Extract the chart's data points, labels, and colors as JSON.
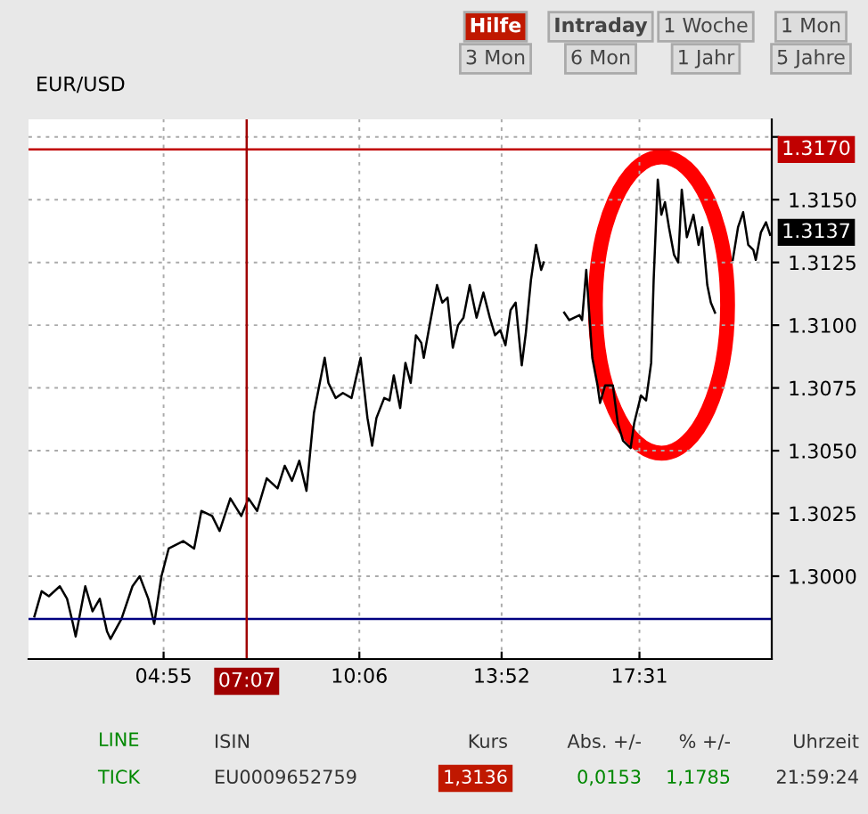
{
  "chart_data": {
    "type": "line",
    "title": "EUR/USD",
    "x": [
      1.496,
      1.688,
      1.879,
      2.17,
      2.361,
      2.517,
      2.589,
      2.843,
      3.035,
      3.227,
      3.419,
      3.512,
      3.802,
      4.093,
      4.284,
      4.512,
      4.668,
      4.86,
      5.051,
      5.435,
      5.725,
      5.917,
      6.202,
      6.399,
      6.684,
      6.974,
      7.166,
      7.394,
      7.648,
      7.934,
      8.125,
      8.317,
      8.509,
      8.7,
      8.897,
      9.182,
      9.281,
      9.473,
      9.664,
      9.893,
      10.134,
      10.315,
      10.439,
      10.552,
      10.759,
      10.899,
      11.012,
      11.181,
      11.32,
      11.46,
      11.599,
      11.739,
      11.806,
      11.949,
      12.157,
      12.296,
      12.435,
      12.575,
      12.714,
      12.857,
      13.023,
      13.204,
      13.385,
      13.554,
      13.693,
      13.833,
      13.969,
      14.104,
      14.239,
      14.4,
      14.509,
      14.644,
      14.779,
      14.914,
      14.984,
      15.327,
      15.524,
      15.659,
      15.929,
      15.998,
      16.108,
      16.268,
      16.407,
      16.473,
      16.608,
      16.812,
      16.944,
      17.082,
      17.283,
      17.378,
      17.557,
      17.692,
      17.827,
      17.893,
      18.002,
      18.097,
      18.192,
      18.298,
      18.433,
      18.542,
      18.637,
      18.772,
      18.947,
      19.082,
      19.177,
      19.313,
      19.407,
      19.517,
      19.707,
      19.988,
      20.127,
      20.262,
      20.397,
      20.532,
      20.597,
      20.733,
      20.868,
      20.977
    ],
    "series": [
      {
        "color": "#000000",
        "values": [
          1.2984,
          1.2994,
          1.2992,
          1.2996,
          1.2991,
          1.2981,
          1.2976,
          1.2996,
          1.2986,
          1.2991,
          1.2978,
          1.2975,
          1.2983,
          1.2996,
          1.3,
          1.2991,
          1.2981,
          1.3,
          1.3011,
          1.3014,
          1.3011,
          1.3026,
          1.3024,
          1.3018,
          1.3031,
          1.3024,
          1.3031,
          1.3026,
          1.3039,
          1.3035,
          1.3044,
          1.3038,
          1.3046,
          1.3034,
          1.3065,
          1.3087,
          1.3077,
          1.3071,
          1.3073,
          1.3071,
          1.3087,
          1.3063,
          1.3052,
          1.3063,
          1.3071,
          1.307,
          1.308,
          1.3067,
          1.3085,
          1.3077,
          1.3096,
          1.3093,
          1.3087,
          1.3099,
          1.3116,
          1.3109,
          1.3111,
          1.3091,
          1.31,
          1.3103,
          1.3116,
          1.3103,
          1.3113,
          1.3103,
          1.3096,
          1.3098,
          1.3092,
          1.3106,
          1.3109,
          1.3084,
          1.3097,
          1.3118,
          1.3132,
          1.3122,
          1.3125,
          null,
          1.3105,
          1.3102,
          1.3104,
          1.3102,
          1.3122,
          1.3087,
          1.3076,
          1.3069,
          1.3076,
          1.3076,
          1.3061,
          1.3054,
          1.3051,
          1.3061,
          1.3072,
          1.307,
          1.3085,
          1.3118,
          1.3158,
          1.3144,
          1.3149,
          1.3139,
          1.3128,
          1.3125,
          1.3154,
          1.3135,
          1.3144,
          1.3132,
          1.3139,
          1.3116,
          1.3109,
          1.3105,
          null,
          1.3126,
          1.3139,
          1.3145,
          1.3132,
          1.313,
          1.3126,
          1.3137,
          1.3141,
          1.3136
        ]
      }
    ],
    "xlim": [
      1.34,
      21.02
    ],
    "ylim": [
      1.2967,
      1.3182
    ],
    "xticks": [
      {
        "value": 4.9167,
        "label": "04:55"
      },
      {
        "value": 10.1,
        "label": "10:06"
      },
      {
        "value": 13.8667,
        "label": "13:52"
      },
      {
        "value": 17.5167,
        "label": "17:31"
      }
    ],
    "yticks": [
      {
        "value": 1.3,
        "label": "1.3000"
      },
      {
        "value": 1.3025,
        "label": "1.3025"
      },
      {
        "value": 1.305,
        "label": "1.3050"
      },
      {
        "value": 1.3075,
        "label": "1.3075"
      },
      {
        "value": 1.31,
        "label": "1.3100"
      },
      {
        "value": 1.3125,
        "label": "1.3125"
      },
      {
        "value": 1.315,
        "label": "1.3150"
      },
      {
        "value": 1.3175,
        "label": null
      }
    ],
    "grid": true,
    "line_style": "solid",
    "legend": false,
    "ref_lines": [
      {
        "axis": "y",
        "value": 1.317,
        "label": "1.3170",
        "color": "#c00000"
      },
      {
        "axis": "y",
        "value": 1.2983,
        "color": "#000080"
      },
      {
        "axis": "x",
        "value": 7.1167,
        "label": "07:07",
        "color": "#a00000"
      }
    ],
    "annotations": [
      {
        "text": "1.3137",
        "x": 21.02,
        "y": 1.3137
      },
      "Hilfe",
      "Intraday",
      "1 Woche",
      "1 Mon",
      "3 Mon",
      "6 Mon",
      "1 Jahr",
      "5 Jahre",
      "LINE",
      "TICK",
      "ISIN",
      "Kurs",
      "Abs. +/-",
      "% +/-",
      "Uhrzeit",
      "EU0009652759",
      "1,3136",
      "0,0153",
      "1,1785",
      "21:59:24"
    ]
  }
}
